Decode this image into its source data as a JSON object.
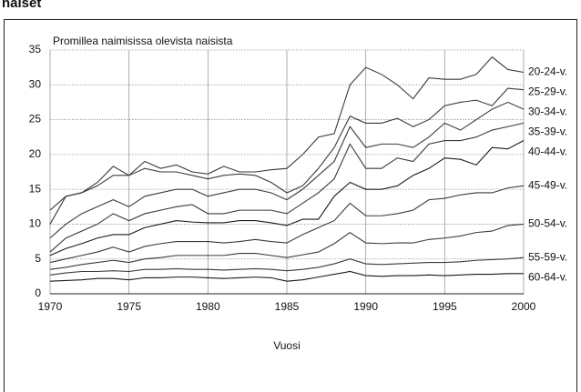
{
  "chart_data": {
    "type": "line",
    "title": "naiset",
    "subtitle": "Promillea naimisissa olevista naisista",
    "x_label": "Vuosi",
    "x": [
      1970,
      1971,
      1972,
      1973,
      1974,
      1975,
      1976,
      1977,
      1978,
      1979,
      1980,
      1981,
      1982,
      1983,
      1984,
      1985,
      1986,
      1987,
      1988,
      1989,
      1990,
      1991,
      1992,
      1993,
      1994,
      1995,
      1996,
      1997,
      1998,
      1999,
      2000
    ],
    "series": [
      {
        "name": "20-24-v.",
        "color": "#3a3a3a",
        "values": [
          12,
          14,
          14.5,
          16,
          18.3,
          17,
          19,
          18,
          18.5,
          17.5,
          17.2,
          18.3,
          17.5,
          17.5,
          17.8,
          18,
          20,
          22.5,
          23,
          30,
          32.5,
          31.5,
          30,
          28,
          31,
          30.8,
          30.8,
          31.5,
          34,
          32.2,
          31.8
        ]
      },
      {
        "name": "25-29-v.",
        "color": "#3a3a3a",
        "values": [
          10,
          14,
          14.5,
          15.5,
          17,
          17,
          18,
          17.5,
          17.5,
          17,
          16.5,
          17,
          17.2,
          17,
          16,
          14.5,
          15.5,
          18,
          21,
          25.5,
          24.5,
          24.5,
          25.2,
          24,
          25,
          27,
          27.5,
          27.8,
          27,
          29.5,
          29.3
        ]
      },
      {
        "name": "30-34-v.",
        "color": "#3a3a3a",
        "values": [
          8,
          10,
          11.5,
          12.5,
          13.5,
          12.5,
          14,
          14.5,
          15,
          15,
          14,
          14.5,
          15,
          15,
          14.5,
          13.5,
          15,
          17,
          19,
          24,
          21,
          21.5,
          21.5,
          21,
          22.5,
          24.5,
          23.5,
          25,
          26.5,
          27.5,
          26.5
        ]
      },
      {
        "name": "35-39-v.",
        "color": "#3a3a3a",
        "values": [
          6,
          8,
          9,
          10,
          11.5,
          10.5,
          11.5,
          12,
          12.5,
          12.8,
          11.5,
          11.5,
          12,
          12,
          12,
          11.5,
          13,
          14.5,
          16.5,
          21.5,
          18,
          18,
          19.5,
          19,
          21.5,
          22,
          22,
          22.5,
          23.5,
          24,
          24.5
        ]
      },
      {
        "name": "40-44-v.",
        "color": "#1a1a1a",
        "values": [
          5.5,
          6.5,
          7.2,
          8,
          8.5,
          8.5,
          9.5,
          10,
          10.5,
          10.3,
          10.2,
          10.2,
          10.5,
          10.5,
          10.2,
          9.8,
          10.7,
          10.7,
          14,
          16,
          15,
          15,
          15.5,
          17,
          18,
          19.5,
          19.3,
          18.5,
          21,
          20.8,
          22
        ]
      },
      {
        "name": "45-49-v.",
        "color": "#3a3a3a",
        "values": [
          4.5,
          5,
          5.5,
          6,
          6.7,
          6,
          6.8,
          7.2,
          7.5,
          7.5,
          7.5,
          7.3,
          7.5,
          7.8,
          7.5,
          7.3,
          8.5,
          9.5,
          10.5,
          13,
          11.2,
          11.2,
          11.5,
          12,
          13.5,
          13.7,
          14.2,
          14.5,
          14.5,
          15.2,
          15.5
        ]
      },
      {
        "name": "50-54-v.",
        "color": "#3a3a3a",
        "values": [
          3.5,
          3.8,
          4.2,
          4.5,
          4.8,
          4.5,
          5,
          5.2,
          5.5,
          5.5,
          5.5,
          5.5,
          5.8,
          5.8,
          5.5,
          5.2,
          5.6,
          6,
          7.2,
          8.8,
          7.3,
          7.2,
          7.3,
          7.3,
          7.8,
          8,
          8.3,
          8.8,
          9,
          9.8,
          10
        ]
      },
      {
        "name": "55-59-v.",
        "color": "#3a3a3a",
        "values": [
          2.7,
          3,
          3.2,
          3.2,
          3.3,
          3.2,
          3.5,
          3.5,
          3.6,
          3.5,
          3.5,
          3.4,
          3.5,
          3.6,
          3.5,
          3.3,
          3.5,
          3.8,
          4.3,
          5,
          4.3,
          4.2,
          4.3,
          4.4,
          4.5,
          4.5,
          4.6,
          4.8,
          4.9,
          5,
          5.2
        ]
      },
      {
        "name": "60-64-v.",
        "color": "#1a1a1a",
        "values": [
          1.8,
          1.9,
          2,
          2.2,
          2.2,
          2,
          2.3,
          2.3,
          2.4,
          2.4,
          2.3,
          2.2,
          2.3,
          2.4,
          2.3,
          1.8,
          2,
          2.4,
          2.8,
          3.2,
          2.6,
          2.5,
          2.6,
          2.6,
          2.7,
          2.6,
          2.7,
          2.8,
          2.8,
          2.9,
          2.9
        ]
      }
    ],
    "xlim": [
      1970,
      2000
    ],
    "xticks": [
      1970,
      1975,
      1980,
      1985,
      1990,
      1995,
      2000
    ],
    "ylim": [
      0,
      35
    ],
    "yticks": [
      0,
      5,
      10,
      15,
      20,
      25,
      30,
      35
    ],
    "grid": true
  }
}
